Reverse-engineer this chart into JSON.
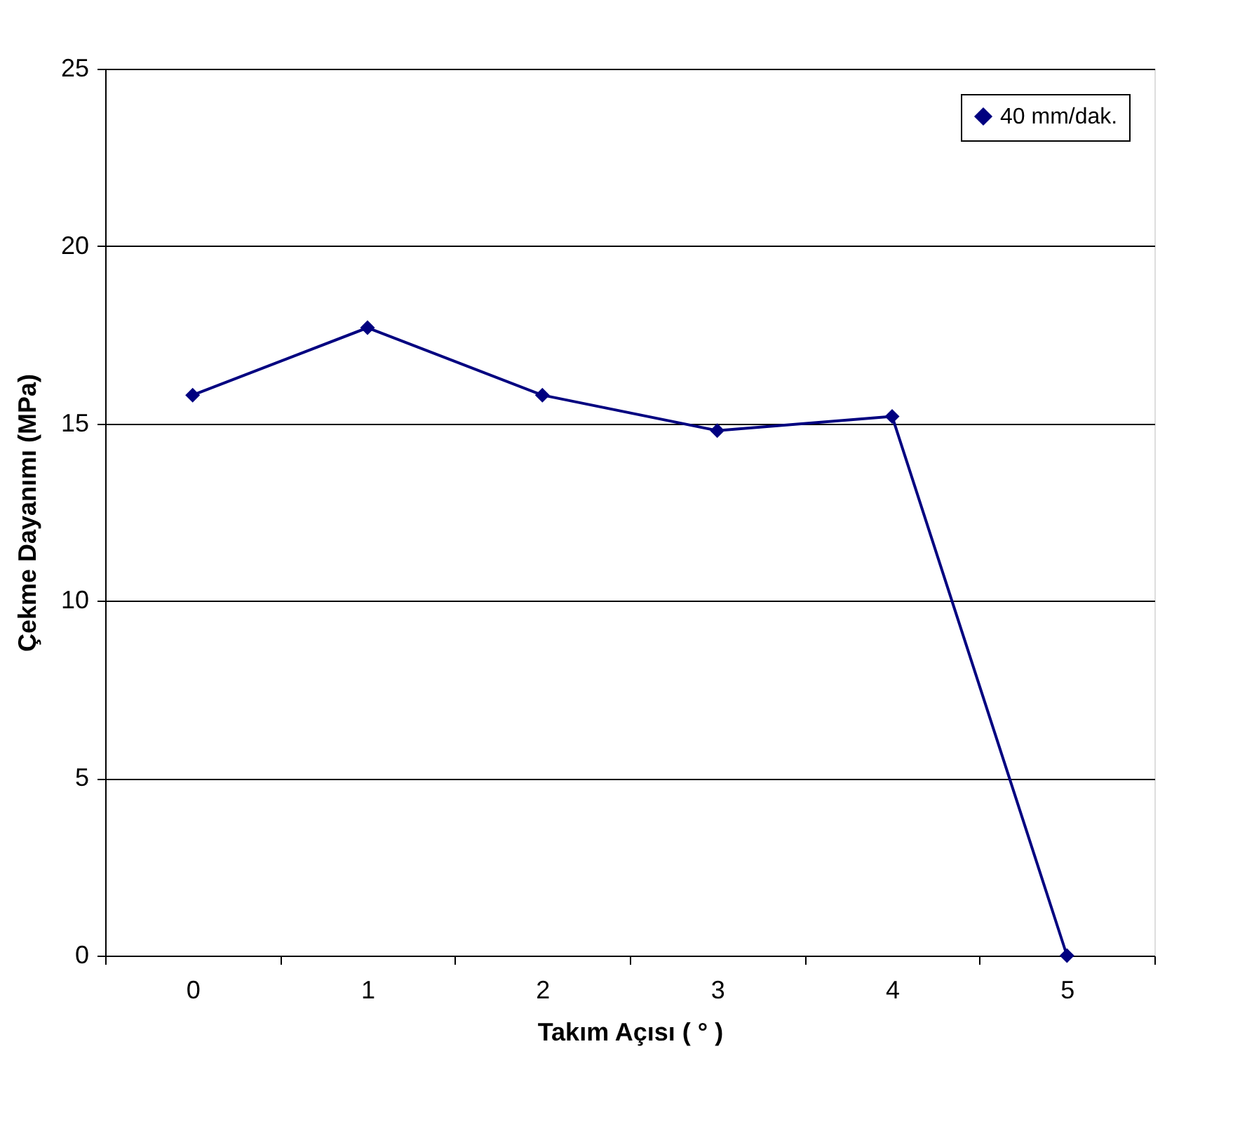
{
  "chart_data": {
    "type": "line",
    "xlabel": "Takım Açısı ( ° )",
    "ylabel": "Çekme Dayanımı (MPa)",
    "categories": [
      "0",
      "1",
      "2",
      "3",
      "4",
      "5"
    ],
    "series": [
      {
        "name": "40 mm/dak.",
        "color": "#000080",
        "values": [
          15.8,
          17.7,
          15.8,
          14.8,
          15.2,
          0
        ]
      }
    ],
    "ylim": [
      0,
      25
    ],
    "yticks": [
      0,
      5,
      10,
      15,
      20,
      25
    ],
    "grid": "y",
    "legend": "top right",
    "marker": "diamond",
    "line_style": "solid"
  }
}
